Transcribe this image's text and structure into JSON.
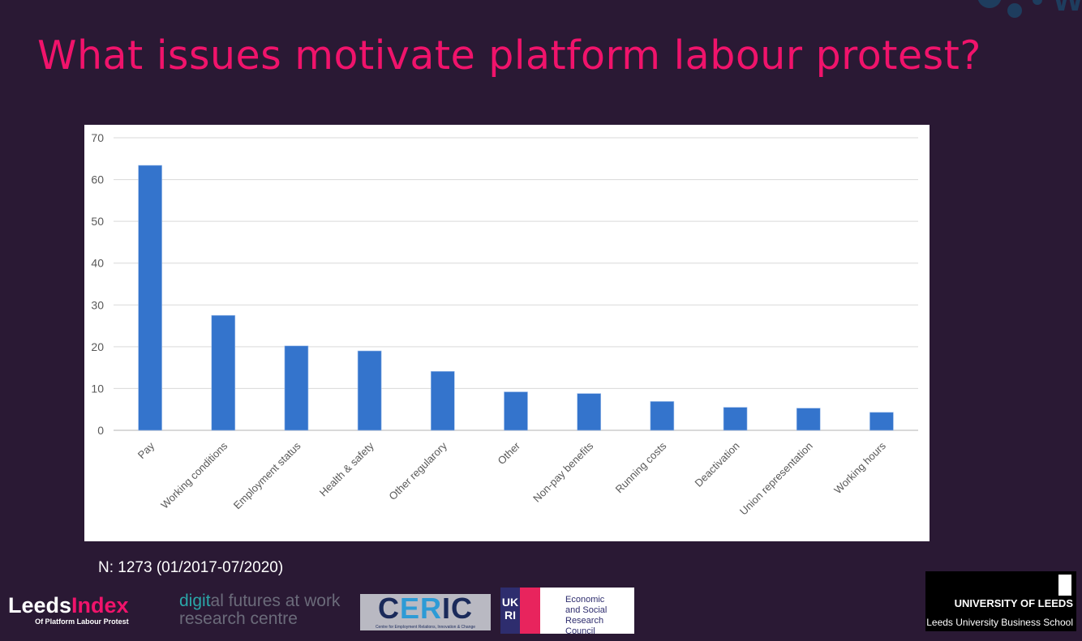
{
  "slide": {
    "title": "What issues motivate platform labour protest?",
    "note": "N: 1273 (01/2017-07/2020)",
    "title_color": "#f0136b",
    "background": "#2a1934"
  },
  "logos": {
    "leeds_index": {
      "main1": "Leeds",
      "main2": "Index",
      "sub": "Of Platform Labour Protest"
    },
    "dfw": {
      "line1a": "digit",
      "line1b": "al futures at work",
      "line2": "research centre"
    },
    "ceric": {
      "a": "C",
      "b": "ER",
      "c": "IC",
      "sub": "Centre for Employment Relations, Innovation & Change"
    },
    "ukri": {
      "mark": "UK RI",
      "line1": "Economic",
      "line2": "and Social",
      "line3": "Research Council"
    },
    "uol": {
      "name": "UNIVERSITY OF LEEDS",
      "school": "Leeds University Business School"
    }
  },
  "chart_data": {
    "type": "bar",
    "categories": [
      "Pay",
      "Working conditions",
      "Employment status",
      "Health & safety",
      "Other regularory",
      "Other",
      "Non-pay benefits",
      "Running costs",
      "Deactivation",
      "Union representation",
      "Working hours"
    ],
    "values": [
      63.4,
      27.5,
      20.2,
      19.0,
      14.1,
      9.2,
      8.8,
      6.9,
      5.5,
      5.3,
      4.3
    ],
    "ylim": [
      0,
      70
    ],
    "yticks": [
      0,
      10,
      20,
      30,
      40,
      50,
      60,
      70
    ],
    "grid": true,
    "bar_color": "#3474cc",
    "xlabel": "",
    "ylabel": ""
  }
}
